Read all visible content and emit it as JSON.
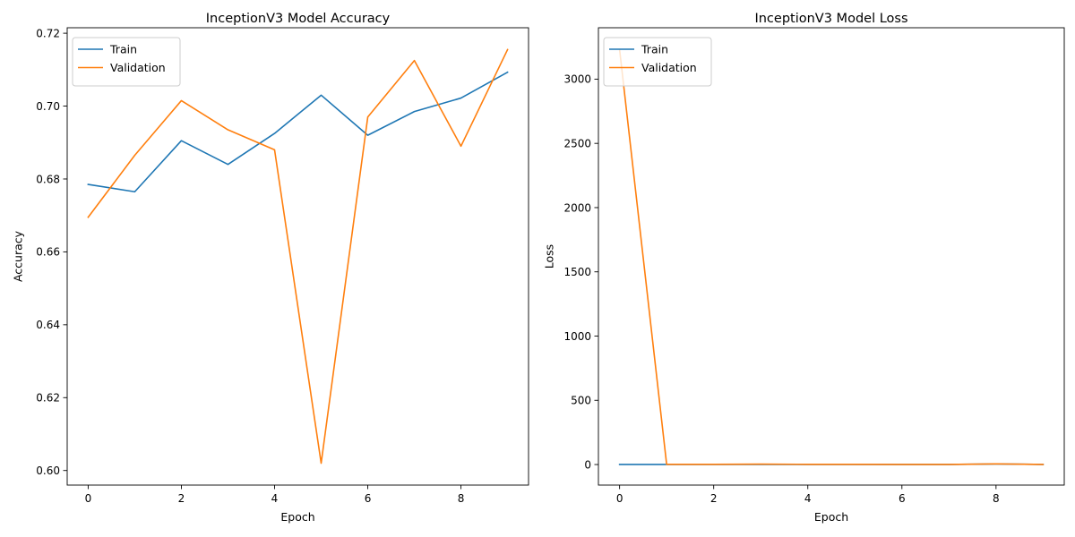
{
  "chart_data": [
    {
      "type": "line",
      "title": "InceptionV3 Model Accuracy",
      "xlabel": "Epoch",
      "ylabel": "Accuracy",
      "xlim": [
        -0.45,
        9.45
      ],
      "ylim": [
        0.596,
        0.7215
      ],
      "xticks": [
        0,
        2,
        4,
        6,
        8
      ],
      "xtick_labels": [
        "0",
        "2",
        "4",
        "6",
        "8"
      ],
      "yticks": [
        0.6,
        0.62,
        0.64,
        0.66,
        0.68,
        0.7,
        0.72
      ],
      "ytick_labels": [
        "0.60",
        "0.62",
        "0.64",
        "0.66",
        "0.68",
        "0.70",
        "0.72"
      ],
      "legend_position": "upper left",
      "grid": false,
      "x": [
        0,
        1,
        2,
        3,
        4,
        5,
        6,
        7,
        8,
        9
      ],
      "series": [
        {
          "name": "Train",
          "color": "#1f77b4",
          "values": [
            0.6785,
            0.6765,
            0.6905,
            0.684,
            0.6925,
            0.703,
            0.692,
            0.6985,
            0.7022,
            0.7093
          ]
        },
        {
          "name": "Validation",
          "color": "#ff7f0e",
          "values": [
            0.6695,
            0.6865,
            0.7015,
            0.6935,
            0.688,
            0.602,
            0.697,
            0.7125,
            0.689,
            0.7155
          ]
        }
      ]
    },
    {
      "type": "line",
      "title": "InceptionV3 Model Loss",
      "xlabel": "Epoch",
      "ylabel": "Loss",
      "xlim": [
        -0.45,
        9.45
      ],
      "ylim": [
        -160,
        3400
      ],
      "xticks": [
        0,
        2,
        4,
        6,
        8
      ],
      "xtick_labels": [
        "0",
        "2",
        "4",
        "6",
        "8"
      ],
      "yticks": [
        0,
        500,
        1000,
        1500,
        2000,
        2500,
        3000
      ],
      "ytick_labels": [
        "0",
        "500",
        "1000",
        "1500",
        "2000",
        "2500",
        "3000"
      ],
      "legend_position": "upper left",
      "grid": false,
      "x": [
        0,
        1,
        2,
        3,
        4,
        5,
        6,
        7,
        8,
        9
      ],
      "series": [
        {
          "name": "Train",
          "color": "#1f77b4",
          "values": [
            0.62,
            0.61,
            0.6,
            0.61,
            0.6,
            0.59,
            0.6,
            0.59,
            4.5,
            0.6
          ]
        },
        {
          "name": "Validation",
          "color": "#ff7f0e",
          "values": [
            3230,
            1.3,
            1.2,
            3.5,
            1.5,
            1.8,
            1.0,
            0.9,
            5.0,
            1.0
          ]
        }
      ]
    }
  ]
}
